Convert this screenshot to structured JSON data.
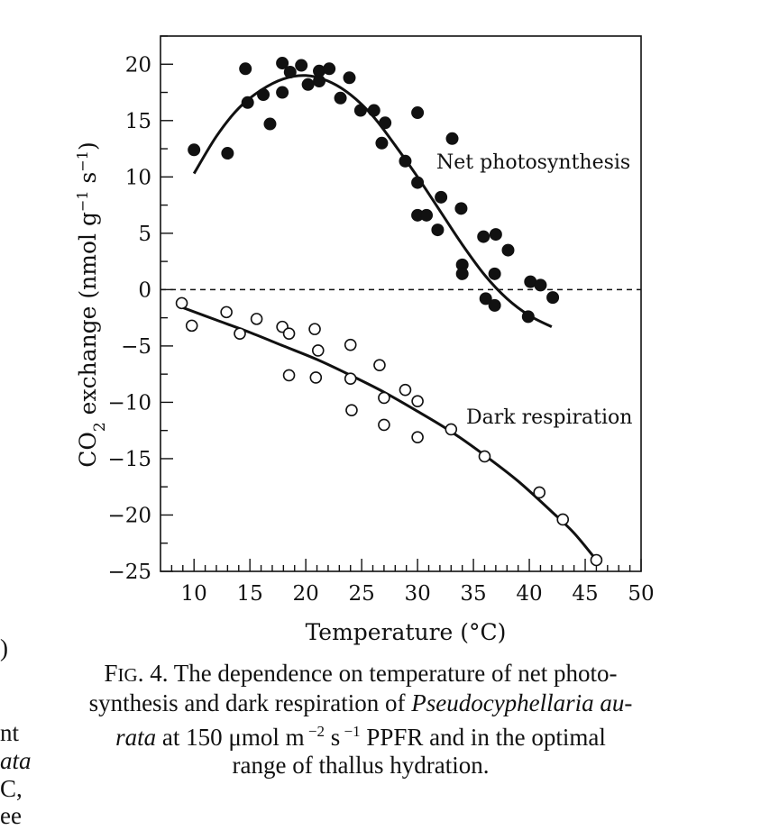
{
  "chart_data": {
    "type": "scatter",
    "xlabel": "Temperature (°C)",
    "ylabel_main": "CO",
    "ylabel_sub": "2",
    "ylabel_rest": " exchange (nmol g",
    "ylabel_sup1": "−1",
    "ylabel_s": " s",
    "ylabel_sup2": "−1",
    "ylabel_close": ")",
    "xlim": [
      7,
      50
    ],
    "ylim": [
      -25,
      22.5
    ],
    "x_ticks": [
      "10",
      "15",
      "20",
      "25",
      "30",
      "35",
      "40",
      "45",
      "50"
    ],
    "y_ticks": [
      "20",
      "15",
      "10",
      "5",
      "0",
      "−5",
      "−10",
      "−15",
      "−20",
      "−25"
    ],
    "zero_line": "dashed",
    "series": [
      {
        "name": "Net photosynthesis",
        "marker": "filled-circle",
        "points": [
          [
            10,
            12.4
          ],
          [
            13,
            12.1
          ],
          [
            14.6,
            19.6
          ],
          [
            14.8,
            16.6
          ],
          [
            16.2,
            17.3
          ],
          [
            16.8,
            14.7
          ],
          [
            17.9,
            20.1
          ],
          [
            17.9,
            17.5
          ],
          [
            18.6,
            19.3
          ],
          [
            19.6,
            19.9
          ],
          [
            20.2,
            18.2
          ],
          [
            21.2,
            19.4
          ],
          [
            21.2,
            18.5
          ],
          [
            22.1,
            19.6
          ],
          [
            23.1,
            17.0
          ],
          [
            23.9,
            18.8
          ],
          [
            24.9,
            15.9
          ],
          [
            26.1,
            15.9
          ],
          [
            26.8,
            13.0
          ],
          [
            27.1,
            14.8
          ],
          [
            28.9,
            11.4
          ],
          [
            30.0,
            9.5
          ],
          [
            30.0,
            15.7
          ],
          [
            30.0,
            6.6
          ],
          [
            30.8,
            6.6
          ],
          [
            31.8,
            5.3
          ],
          [
            32.1,
            8.2
          ],
          [
            33.1,
            13.4
          ],
          [
            33.9,
            7.2
          ],
          [
            34.0,
            2.2
          ],
          [
            34.0,
            1.4
          ],
          [
            35.9,
            4.7
          ],
          [
            36.1,
            -0.8
          ],
          [
            36.9,
            1.4
          ],
          [
            37.0,
            4.9
          ],
          [
            36.9,
            -1.4
          ],
          [
            38.1,
            3.5
          ],
          [
            39.9,
            -2.4
          ],
          [
            40.1,
            0.7
          ],
          [
            41.0,
            0.4
          ],
          [
            42.1,
            -0.7
          ]
        ],
        "fit": [
          [
            10,
            10.3
          ],
          [
            12,
            13.6
          ],
          [
            14,
            16.1
          ],
          [
            16,
            17.7
          ],
          [
            18,
            18.7
          ],
          [
            20,
            19.0
          ],
          [
            22,
            18.5
          ],
          [
            24,
            17.3
          ],
          [
            26,
            15.4
          ],
          [
            28,
            12.8
          ],
          [
            30,
            10.0
          ],
          [
            32,
            7.0
          ],
          [
            34,
            4.0
          ],
          [
            36,
            1.3
          ],
          [
            38,
            -0.8
          ],
          [
            40,
            -2.3
          ],
          [
            42,
            -3.3
          ]
        ],
        "label": "Net photosynthesis"
      },
      {
        "name": "Dark respiration",
        "marker": "open-circle",
        "points": [
          [
            8.9,
            -1.2
          ],
          [
            9.8,
            -3.2
          ],
          [
            12.9,
            -2.0
          ],
          [
            14.1,
            -3.9
          ],
          [
            15.6,
            -2.6
          ],
          [
            17.9,
            -3.3
          ],
          [
            18.5,
            -3.9
          ],
          [
            18.5,
            -7.6
          ],
          [
            20.8,
            -3.5
          ],
          [
            20.9,
            -7.8
          ],
          [
            21.1,
            -5.4
          ],
          [
            24.0,
            -4.9
          ],
          [
            24.0,
            -7.9
          ],
          [
            24.1,
            -10.7
          ],
          [
            26.6,
            -6.7
          ],
          [
            27.0,
            -9.6
          ],
          [
            27.0,
            -12.0
          ],
          [
            28.9,
            -8.9
          ],
          [
            30.0,
            -9.9
          ],
          [
            30.0,
            -13.1
          ],
          [
            33.0,
            -12.4
          ],
          [
            36.0,
            -14.8
          ],
          [
            40.9,
            -18.0
          ],
          [
            43.0,
            -20.4
          ],
          [
            46.0,
            -24.0
          ]
        ],
        "fit": [
          [
            9,
            -1.6
          ],
          [
            12,
            -2.7
          ],
          [
            15,
            -3.8
          ],
          [
            18,
            -5.0
          ],
          [
            21,
            -6.2
          ],
          [
            24,
            -7.6
          ],
          [
            27,
            -9.1
          ],
          [
            30,
            -10.8
          ],
          [
            33,
            -12.6
          ],
          [
            36,
            -14.7
          ],
          [
            39,
            -17.0
          ],
          [
            42,
            -19.7
          ],
          [
            44,
            -21.6
          ],
          [
            46,
            -24.0
          ]
        ],
        "label": "Dark respiration"
      }
    ]
  },
  "caption": {
    "line1_lead": "F",
    "line1_smallcaps": "IG",
    "line1_rest": ". 4. The dependence on temperature of net photo-",
    "line2_a": "synthesis and dark respiration of ",
    "line2_italic": "Pseudocyphellaria au-",
    "line3_italic": "rata",
    "line3_a": " at 150 μmol m",
    "line3_sup1": " −2",
    "line3_b": " s",
    "line3_sup2": " −1",
    "line3_c": " PPFR and in the optimal",
    "line4": "range of thallus hydration."
  },
  "margin_fragments": [
    ")",
    "nt",
    "ata",
    "C,",
    "ee"
  ]
}
